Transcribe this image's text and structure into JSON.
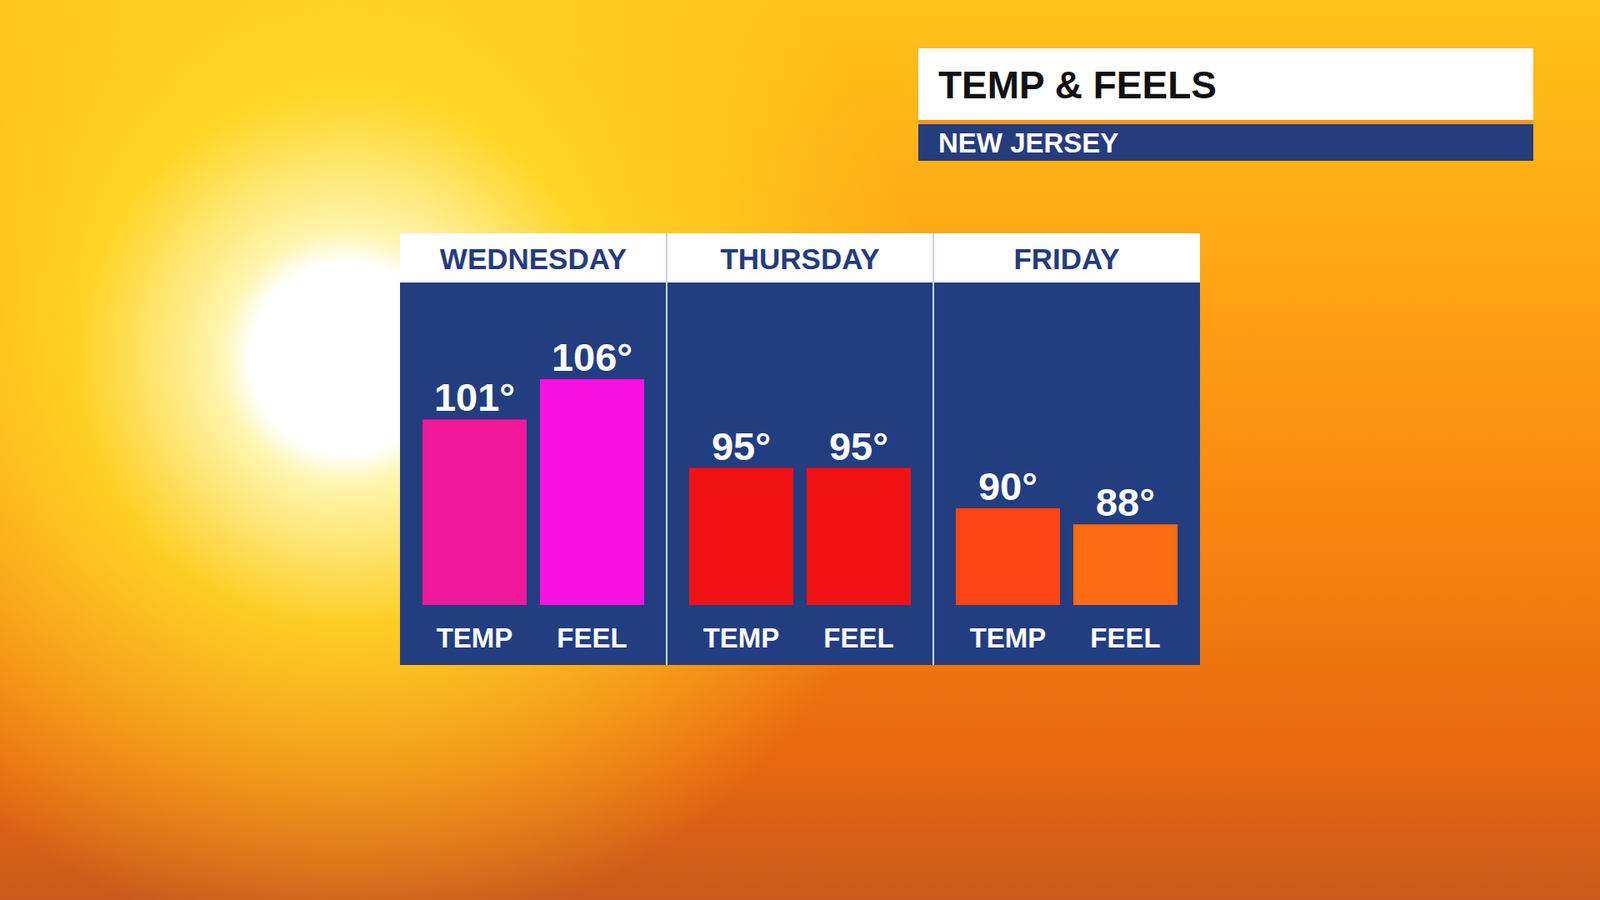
{
  "chart_data": {
    "type": "bar",
    "title": "TEMP & FEELS",
    "subtitle": "NEW JERSEY",
    "categories": [
      "WEDNESDAY",
      "THURSDAY",
      "FRIDAY"
    ],
    "series": [
      {
        "name": "TEMP",
        "values": [
          101,
          95,
          90
        ],
        "value_labels": [
          "101°",
          "95°",
          "90°"
        ],
        "colors": [
          "#f0189b",
          "#f01212",
          "#fc4414"
        ]
      },
      {
        "name": "FEEL",
        "values": [
          106,
          95,
          88
        ],
        "value_labels": [
          "106°",
          "95°",
          "88°"
        ],
        "colors": [
          "#f811e0",
          "#f01212",
          "#fd6b12"
        ]
      }
    ],
    "ylim": [
      78,
      118
    ],
    "data_labels": true,
    "tick_labels": "x"
  }
}
